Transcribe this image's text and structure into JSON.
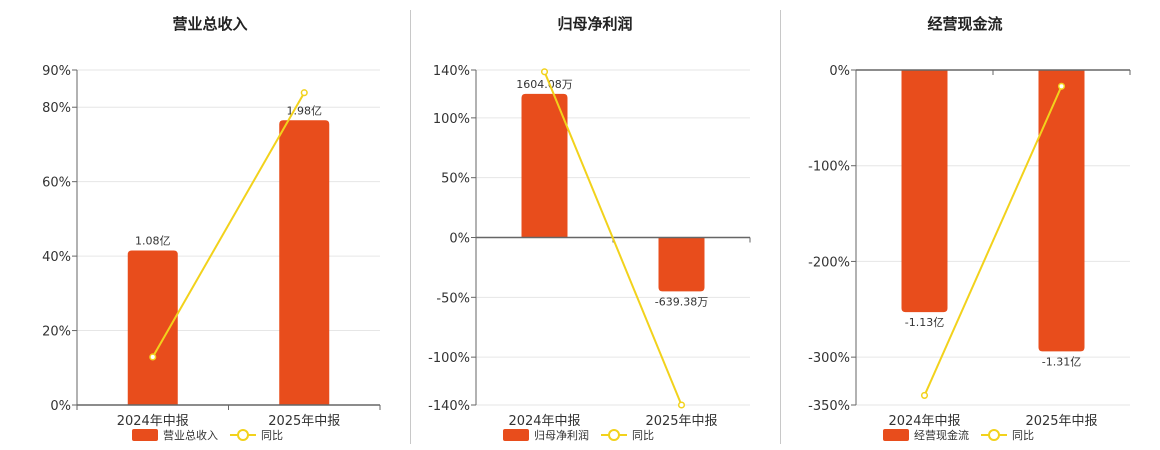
{
  "chart_data": [
    {
      "type": "bar",
      "title": "营业总收入",
      "categories": [
        "2024年中报",
        "2025年中报"
      ],
      "series": [
        {
          "name": "营业总收入",
          "kind": "bar",
          "values": [
            41.5,
            76.5
          ],
          "labels": [
            "1.08亿",
            "1.98亿"
          ],
          "color": "#e84d1c"
        },
        {
          "name": "同比",
          "kind": "line",
          "values": [
            12.9,
            83.9
          ],
          "color": "#f2d21c"
        }
      ],
      "ylim": [
        0,
        90
      ],
      "yticks": [
        0,
        20,
        40,
        60,
        80,
        90
      ],
      "ytick_labels": [
        "0%",
        "20%",
        "40%",
        "60%",
        "80%",
        "90%"
      ],
      "grid": true,
      "legend": "bottom"
    },
    {
      "type": "bar",
      "title": "归母净利润",
      "categories": [
        "2024年中报",
        "2025年中报"
      ],
      "series": [
        {
          "name": "归母净利润",
          "kind": "bar",
          "values": [
            120,
            -45
          ],
          "labels": [
            "1604.08万",
            "-639.38万"
          ],
          "color": "#e84d1c"
        },
        {
          "name": "同比",
          "kind": "line",
          "values": [
            138.5,
            -140
          ],
          "color": "#f2d21c"
        }
      ],
      "ylim": [
        -140,
        140
      ],
      "yticks": [
        -140,
        -100,
        -50,
        0,
        50,
        100,
        140
      ],
      "ytick_labels": [
        "-140%",
        "-100%",
        "-50%",
        "0%",
        "50%",
        "100%",
        "140%"
      ],
      "grid": true,
      "legend": "bottom"
    },
    {
      "type": "bar",
      "title": "经营现金流",
      "categories": [
        "2024年中报",
        "2025年中报"
      ],
      "series": [
        {
          "name": "经营现金流",
          "kind": "bar",
          "values": [
            -253,
            -294
          ],
          "labels": [
            "-1.13亿",
            "-1.31亿"
          ],
          "color": "#e84d1c"
        },
        {
          "name": "同比",
          "kind": "line",
          "values": [
            -340,
            -17
          ],
          "color": "#f2d21c"
        }
      ],
      "ylim": [
        -350,
        0
      ],
      "yticks": [
        -350,
        -300,
        -200,
        -100,
        0
      ],
      "ytick_labels": [
        "-350%",
        "-300%",
        "-200%",
        "-100%",
        "0%"
      ],
      "grid": true,
      "legend": "bottom"
    }
  ]
}
